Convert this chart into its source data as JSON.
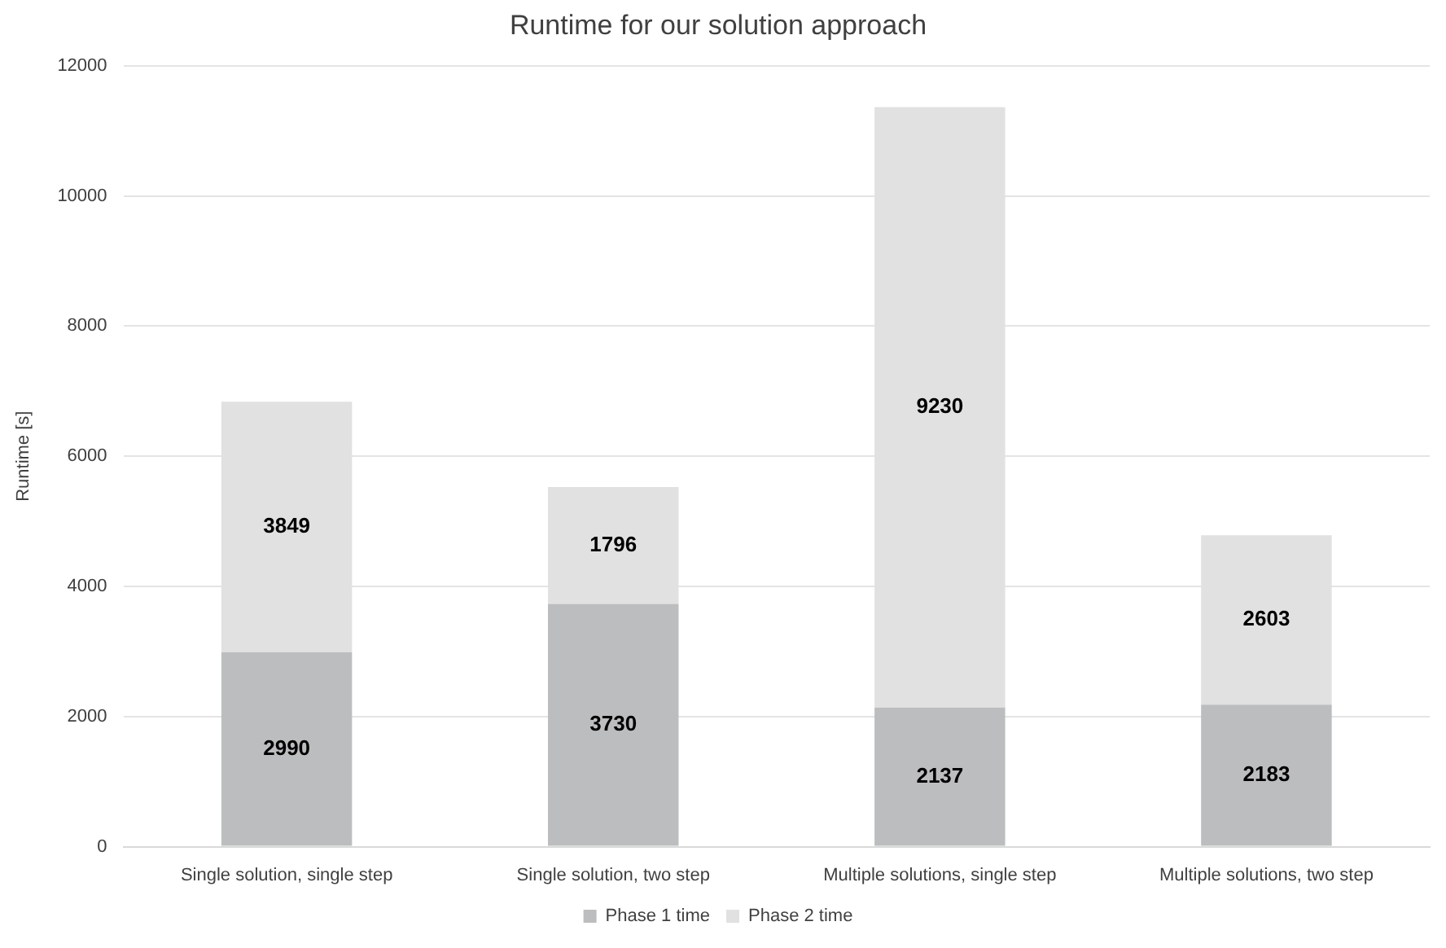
{
  "chart_data": {
    "type": "bar",
    "title": "Runtime for our solution approach",
    "ylabel": "Runtime [s]",
    "categories": [
      "Single solution, single step",
      "Single solution, two step",
      "Multiple solutions, single step",
      "Multiple solutions, two step"
    ],
    "series": [
      {
        "name": "Phase 1 time",
        "color": "#bcbdbe",
        "values": [
          2990,
          3730,
          2137,
          2183
        ]
      },
      {
        "name": "Phase 2 time",
        "color": "#e1e1e1",
        "values": [
          3849,
          1796,
          9230,
          2603
        ]
      }
    ],
    "stacked": true,
    "data_labels": true,
    "ylim": [
      0,
      12000
    ],
    "yticks": [
      0,
      2000,
      4000,
      6000,
      8000,
      10000,
      12000
    ],
    "grid": "y",
    "legend": "bottom"
  }
}
